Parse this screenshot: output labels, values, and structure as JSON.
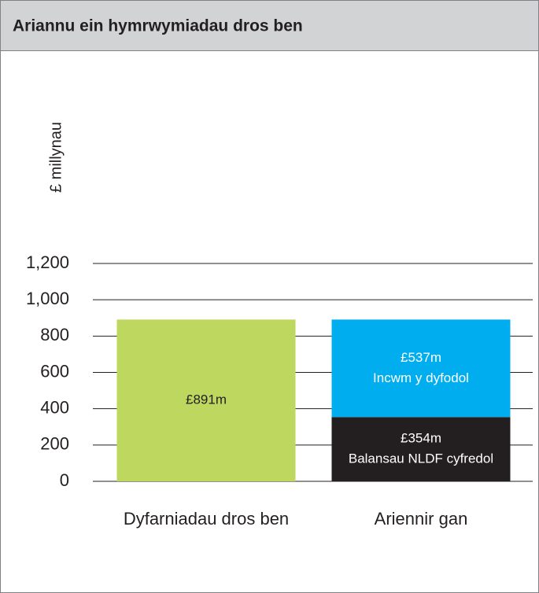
{
  "chart_data": {
    "type": "stacked_bar",
    "title": "Ariannu ein hymrwymiadau dros ben",
    "ylabel": "£ millynau",
    "categories": [
      "Dyfarniadau dros ben",
      "Ariennir gan"
    ],
    "series": [
      {
        "color": "#bed75f",
        "values": [
          891,
          null
        ],
        "value_labels": [
          "£891m",
          null
        ]
      },
      {
        "name": "Balansau NLDF cyfredol",
        "color": "#231f20",
        "values": [
          null,
          354
        ],
        "value_labels": [
          null,
          "£354m"
        ]
      },
      {
        "name": "Incwm y dyfodol",
        "color": "#00aeef",
        "values": [
          null,
          537
        ],
        "value_labels": [
          null,
          "£537m"
        ]
      }
    ],
    "ylim": [
      0,
      1200
    ],
    "yticks": [
      0,
      200,
      400,
      600,
      800,
      {
        "value": 1000,
        "label": "1,000"
      },
      {
        "value": 1200,
        "label": "1,200"
      }
    ],
    "grid": true
  }
}
